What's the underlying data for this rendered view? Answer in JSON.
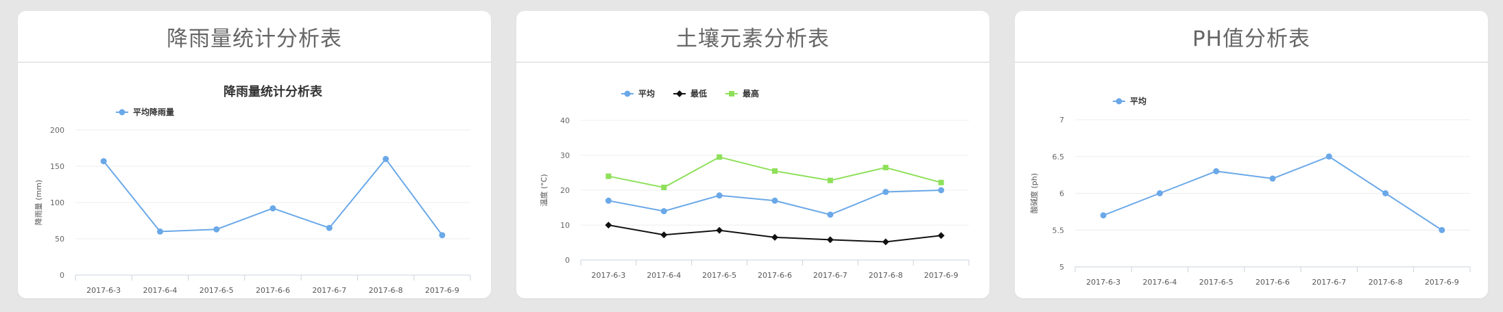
{
  "panels": [
    {
      "title": "降雨量统计分析表"
    },
    {
      "title": "土壤元素分析表"
    },
    {
      "title": "PH值分析表"
    }
  ],
  "chart_data": [
    {
      "type": "line",
      "title": "降雨量统计分析表",
      "ylabel": "降雨量 (mm)",
      "xlabel": "",
      "ylim": [
        0,
        200
      ],
      "yticks": [
        0,
        50,
        100,
        150,
        200
      ],
      "categories": [
        "2017-6-3",
        "2017-6-4",
        "2017-6-5",
        "2017-6-6",
        "2017-6-7",
        "2017-6-8",
        "2017-6-9"
      ],
      "legend_position": "top-left",
      "grid": true,
      "series": [
        {
          "name": "平均降雨量",
          "color": "#6aa8e8",
          "marker": "circle",
          "values": [
            157,
            60,
            63,
            92,
            65,
            160,
            55
          ]
        }
      ]
    },
    {
      "type": "line",
      "title": "",
      "ylabel": "温度 (°C)",
      "xlabel": "",
      "ylim": [
        0,
        40
      ],
      "yticks": [
        0,
        10,
        20,
        30,
        40
      ],
      "categories": [
        "2017-6-3",
        "2017-6-4",
        "2017-6-5",
        "2017-6-6",
        "2017-6-7",
        "2017-6-8",
        "2017-6-9"
      ],
      "legend_position": "top-left",
      "grid": true,
      "series": [
        {
          "name": "平均",
          "color": "#6aa8e8",
          "marker": "circle",
          "values": [
            17,
            14,
            18.5,
            17,
            13,
            19.5,
            20
          ]
        },
        {
          "name": "最低",
          "color": "#111111",
          "marker": "diamond",
          "values": [
            10,
            7.2,
            8.5,
            6.5,
            5.8,
            5.2,
            7
          ]
        },
        {
          "name": "最高",
          "color": "#8ee05a",
          "marker": "square",
          "values": [
            24,
            20.8,
            29.5,
            25.5,
            22.8,
            26.5,
            22.2
          ]
        }
      ]
    },
    {
      "type": "line",
      "title": "",
      "ylabel": "酸碱度 (ph)",
      "xlabel": "",
      "ylim": [
        5,
        7
      ],
      "yticks": [
        5,
        5.5,
        6,
        6.5,
        7
      ],
      "categories": [
        "2017-6-3",
        "2017-6-4",
        "2017-6-5",
        "2017-6-6",
        "2017-6-7",
        "2017-6-8",
        "2017-6-9"
      ],
      "legend_position": "top-left",
      "grid": true,
      "series": [
        {
          "name": "平均",
          "color": "#6aa8e8",
          "marker": "circle",
          "values": [
            5.7,
            6.0,
            6.3,
            6.2,
            6.5,
            6.0,
            5.5
          ]
        }
      ]
    }
  ]
}
